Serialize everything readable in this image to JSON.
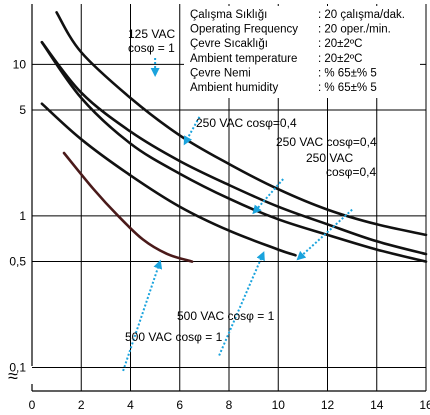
{
  "chart_data": {
    "type": "line",
    "x_axis": {
      "range": [
        0,
        16
      ],
      "ticks": [
        "0",
        "2",
        "4",
        "6",
        "8",
        "10",
        "12",
        "14",
        "16"
      ]
    },
    "y_axis": {
      "scale": "log",
      "range": [
        0.07,
        25
      ],
      "ticks": [
        "0,1",
        "0,5",
        "1",
        "5",
        "10"
      ],
      "tick_values": [
        0.1,
        0.5,
        1,
        5,
        10
      ],
      "break_symbol": "≈"
    },
    "grid": true,
    "conditions": [
      {
        "label": "Çalışma Sıklığı",
        "value": ": 20 çalışma/dak."
      },
      {
        "label": "Operating Frequency",
        "value": ": 20 oper./min."
      },
      {
        "label": "Çevre Sıcaklığı",
        "value": ": 20±2ºC"
      },
      {
        "label": "Ambient temperature",
        "value": ": 20±2ºC"
      },
      {
        "label": "Çevre Nemi",
        "value": ": % 65±% 5"
      },
      {
        "label": "Ambient humidity",
        "value": ": % 65±% 5"
      }
    ],
    "series": [
      {
        "color": "#111111",
        "points": [
          [
            1.0,
            22
          ],
          [
            2.0,
            12
          ],
          [
            4.0,
            6.0
          ],
          [
            6.0,
            3.4
          ],
          [
            8.0,
            2.2
          ],
          [
            10.0,
            1.5
          ],
          [
            12.0,
            1.1
          ],
          [
            14.0,
            0.88
          ],
          [
            16.0,
            0.75
          ]
        ]
      },
      {
        "color": "#111111",
        "points": [
          [
            0.4,
            14
          ],
          [
            2.0,
            6.5
          ],
          [
            4.0,
            3.6
          ],
          [
            6.0,
            2.3
          ],
          [
            8.0,
            1.6
          ],
          [
            10.0,
            1.15
          ],
          [
            12.0,
            0.88
          ],
          [
            14.0,
            0.68
          ],
          [
            16.0,
            0.56
          ]
        ]
      },
      {
        "color": "#111111",
        "points": [
          [
            0.4,
            14
          ],
          [
            2.0,
            6.0
          ],
          [
            4.0,
            3.0
          ],
          [
            6.0,
            1.9
          ],
          [
            8.0,
            1.3
          ],
          [
            10.0,
            0.95
          ],
          [
            12.0,
            0.75
          ],
          [
            14.0,
            0.6
          ],
          [
            16.0,
            0.5
          ]
        ]
      },
      {
        "color": "#111111",
        "points": [
          [
            0.4,
            5.5
          ],
          [
            2.0,
            3.2
          ],
          [
            4.0,
            1.85
          ],
          [
            6.0,
            1.15
          ],
          [
            8.0,
            0.8
          ],
          [
            10.0,
            0.6
          ],
          [
            10.7,
            0.55
          ]
        ]
      },
      {
        "color": "#4a1a1a",
        "points": [
          [
            1.3,
            2.6
          ],
          [
            2.5,
            1.5
          ],
          [
            3.5,
            1.0
          ],
          [
            4.5,
            0.7
          ],
          [
            5.5,
            0.56
          ],
          [
            6.5,
            0.5
          ]
        ]
      }
    ],
    "annotations": [
      {
        "lines": [
          "125 VAC",
          "cosφ = 1"
        ],
        "arrow_from": [
          5.0,
          11.0
        ],
        "arrow_to": [
          5.0,
          8.5
        ]
      },
      {
        "lines": [
          "250 VAC cosφ=0,4"
        ],
        "arrow_from": [
          6.8,
          4.5
        ],
        "arrow_to": [
          6.2,
          3.0
        ]
      },
      {
        "lines": [
          "250 VAC cosφ=0,4"
        ],
        "arrow_from": [
          10.2,
          1.75
        ],
        "arrow_to": [
          9.0,
          1.05
        ]
      },
      {
        "lines": [
          "250 VAC",
          "cosφ=0,4"
        ],
        "arrow_from": [
          13.0,
          1.1
        ],
        "arrow_to": [
          10.8,
          0.52
        ]
      },
      {
        "lines": [
          "500 VAC cosφ = 1"
        ],
        "arrow_from": [
          7.6,
          0.12
        ],
        "arrow_to": [
          9.4,
          0.57
        ]
      },
      {
        "lines": [
          "500 VAC cosφ = 1"
        ],
        "arrow_from": [
          3.7,
          0.095
        ],
        "arrow_to": [
          5.2,
          0.5
        ]
      }
    ]
  }
}
